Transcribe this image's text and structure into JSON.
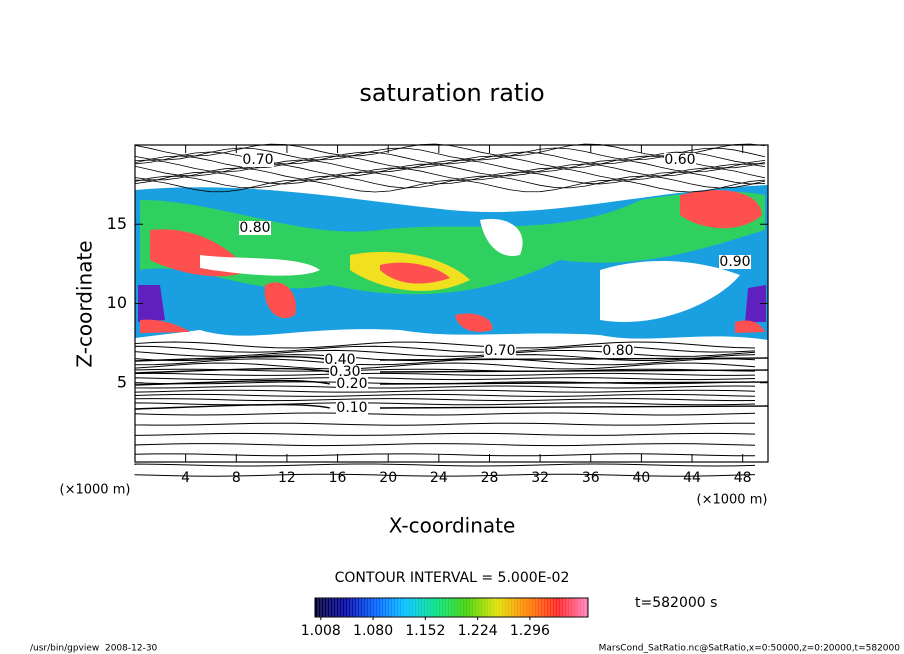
{
  "chart_data": {
    "type": "contour",
    "title": "saturation ratio",
    "x_label": "X-coordinate",
    "y_label": "Z-coordinate",
    "x_unit": "(×1000 m)",
    "y_unit": "(×1000 m)",
    "xlim": [
      0,
      50
    ],
    "ylim": [
      0,
      20
    ],
    "xticks": [
      4,
      8,
      12,
      16,
      20,
      24,
      28,
      32,
      36,
      40,
      44,
      48
    ],
    "yticks": [
      5,
      10,
      15
    ],
    "contour_interval_text": "CONTOUR INTERVAL = 5.000E-02",
    "time_label": "t=582000 s",
    "contour_labels": [
      {
        "value": 0.7,
        "label": "0.70"
      },
      {
        "value": 0.6,
        "label": "0.60"
      },
      {
        "value": 0.8,
        "label": "0.80"
      },
      {
        "value": 0.9,
        "label": "0.90"
      },
      {
        "value": 0.7,
        "label": "0.70"
      },
      {
        "value": 0.8,
        "label": "0.80"
      },
      {
        "value": 0.4,
        "label": "0.40"
      },
      {
        "value": 0.3,
        "label": "0.30"
      },
      {
        "value": 0.2,
        "label": "0.20"
      },
      {
        "value": 0.1,
        "label": "0.10"
      }
    ],
    "colorbar": {
      "clim": [
        1.0,
        1.376
      ],
      "ticks": [
        1.008,
        {
          "value": 1.08,
          "label": "1.080"
        },
        1.152,
        1.224,
        1.296
      ]
    },
    "footer_left": "/usr/bin/gpview  2008-12-30",
    "footer_right": "MarsCond_SatRatio.nc@SatRatio,x=0:50000,z=0:20000,t=582000"
  }
}
